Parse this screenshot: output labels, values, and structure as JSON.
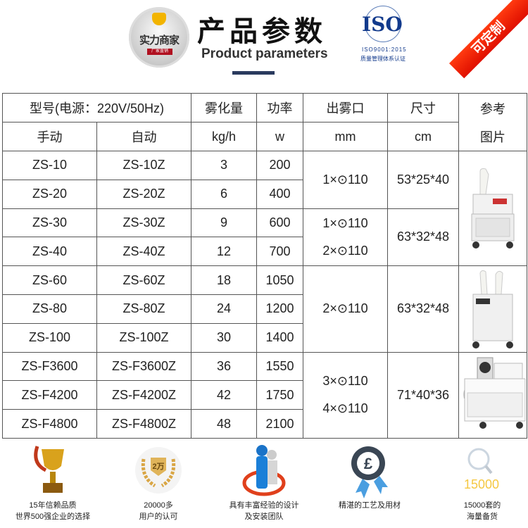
{
  "header": {
    "logo_text": "实力商家",
    "logo_tag": "厂家直销",
    "title_cn": "产品参数",
    "title_en": "Product parameters",
    "iso_word": "ISO",
    "iso_standard": "ISO9001:2015",
    "iso_cert": "质量管理体系认证",
    "ribbon": "可定制"
  },
  "table": {
    "h_model": "型号(电源：220V/50Hz)",
    "h_mist": "雾化量",
    "h_power": "功率",
    "h_outlet": "出雾口",
    "h_size": "尺寸",
    "h_pic1": "参考",
    "h_pic2": "图片",
    "u_manual": "手动",
    "u_auto": "自动",
    "u_mist": "kg/h",
    "u_power": "w",
    "u_outlet": "mm",
    "u_size": "cm",
    "rows": [
      {
        "manual": "ZS-10",
        "auto": "ZS-10Z",
        "mist": "3",
        "power": "200"
      },
      {
        "manual": "ZS-20",
        "auto": "ZS-20Z",
        "mist": "6",
        "power": "400"
      },
      {
        "manual": "ZS-30",
        "auto": "ZS-30Z",
        "mist": "9",
        "power": "600"
      },
      {
        "manual": "ZS-40",
        "auto": "ZS-40Z",
        "mist": "12",
        "power": "700"
      },
      {
        "manual": "ZS-60",
        "auto": "ZS-60Z",
        "mist": "18",
        "power": "1050"
      },
      {
        "manual": "ZS-80",
        "auto": "ZS-80Z",
        "mist": "24",
        "power": "1200"
      },
      {
        "manual": "ZS-100",
        "auto": "ZS-100Z",
        "mist": "30",
        "power": "1400"
      },
      {
        "manual": "ZS-F3600",
        "auto": "ZS-F3600Z",
        "mist": "36",
        "power": "1550"
      },
      {
        "manual": "ZS-F4200",
        "auto": "ZS-F4200Z",
        "mist": "42",
        "power": "1750"
      },
      {
        "manual": "ZS-F4800",
        "auto": "ZS-F4800Z",
        "mist": "48",
        "power": "2100"
      }
    ],
    "groups": [
      {
        "outlet": [
          "1×⊙110"
        ],
        "size": "53*25*40"
      },
      {
        "outlet": [
          "1×⊙110",
          "2×⊙110"
        ],
        "size": "63*32*48"
      },
      {
        "outlet": [
          "2×⊙110"
        ],
        "size": "63*32*48"
      },
      {
        "outlet": [
          "3×⊙110",
          "4×⊙110"
        ],
        "size": "71*40*36"
      }
    ]
  },
  "features": [
    {
      "icon": "trophy-icon",
      "line1": "15年信赖品质",
      "line2": "世界500强企业的选择"
    },
    {
      "icon": "laurel-badge-icon",
      "badge": "2万",
      "line1": "20000多",
      "line2": "用户的认可"
    },
    {
      "icon": "team-icon",
      "line1": "具有丰富经验的设计",
      "line2": "及安装团队"
    },
    {
      "icon": "award-ribbon-icon",
      "line1": "精湛的工艺及用材",
      "line2": ""
    },
    {
      "icon": "magnifier-icon",
      "badge": "15000",
      "line1": "15000套的",
      "line2": "海量备货"
    }
  ],
  "colors": {
    "ribbon": "#e81a00",
    "iso": "#123a8c",
    "border": "#555555"
  }
}
